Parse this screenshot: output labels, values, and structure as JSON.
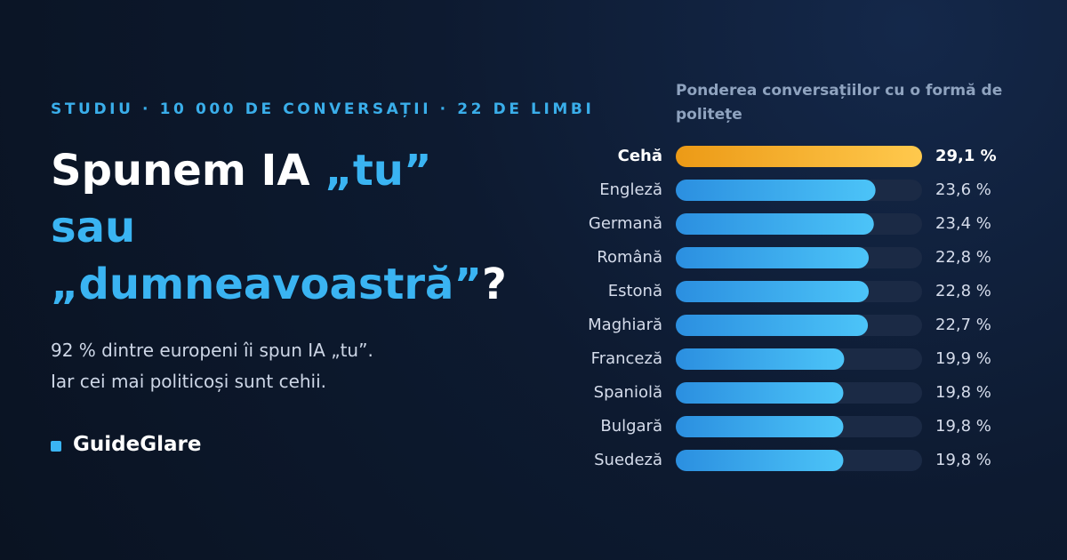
{
  "header": {
    "kicker": "STUDIU · 10 000 DE CONVERSAȚII · 22 DE LIMBI",
    "title": [
      "Spunem IA ",
      "„tu”",
      "sau",
      "„dumneavoastră”",
      "?"
    ],
    "subtitle": [
      "92 % dintre europeni îi spun IA „tu”.",
      "Iar cei mai politicoși sunt cehii."
    ],
    "brand": "GuideGlare"
  },
  "chart_data": {
    "type": "bar",
    "orientation": "horizontal",
    "title": "Ponderea conversațiilor cu o formă de politețe",
    "categories": [
      "Cehă",
      "Engleză",
      "Germană",
      "Română",
      "Estonă",
      "Maghiară",
      "Franceză",
      "Spaniolă",
      "Bulgară",
      "Suedeză"
    ],
    "values": [
      29.1,
      23.6,
      23.4,
      22.8,
      22.8,
      22.7,
      19.9,
      19.8,
      19.8,
      19.8
    ],
    "value_labels": [
      "29,1 %",
      "23,6 %",
      "23,4 %",
      "22,8 %",
      "22,8 %",
      "22,7 %",
      "19,9 %",
      "19,8 %",
      "19,8 %",
      "19,8 %"
    ],
    "colors": [
      "#f5a623",
      "#3aa8ee",
      "#3aa8ee",
      "#3aa8ee",
      "#3aa8ee",
      "#3aa8ee",
      "#3aa8ee",
      "#3aa8ee",
      "#3aa8ee",
      "#3aa8ee"
    ]
  }
}
